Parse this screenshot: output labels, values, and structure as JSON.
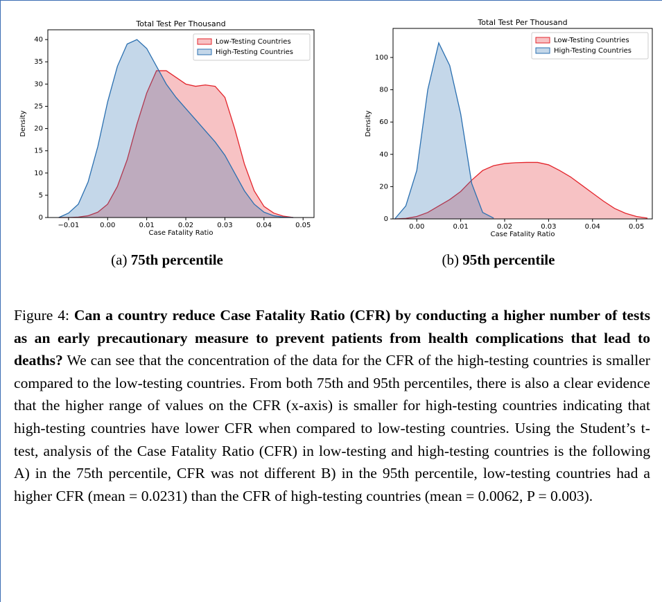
{
  "chart_data": [
    {
      "type": "kde",
      "title": "Total Test Per Thousand",
      "xlabel": "Case Fatality Ratio",
      "ylabel": "Density",
      "x": [
        -0.0125,
        -0.01,
        -0.0075,
        -0.005,
        -0.0025,
        0,
        0.0025,
        0.005,
        0.0075,
        0.01,
        0.0125,
        0.015,
        0.0175,
        0.02,
        0.0225,
        0.025,
        0.0275,
        0.03,
        0.0325,
        0.035,
        0.0375,
        0.04,
        0.0425,
        0.045,
        0.0475
      ],
      "series": [
        {
          "name": "Low-Testing Countries",
          "color": "#e3242b",
          "values": [
            0,
            0,
            0.1,
            0.4,
            1.2,
            3,
            7,
            13,
            21,
            28,
            33,
            33,
            31.5,
            30,
            29.5,
            29.8,
            29.5,
            27,
            20,
            12,
            6,
            2.5,
            1,
            0.3,
            0
          ]
        },
        {
          "name": "High-Testing Countries",
          "color": "#2a6fb0",
          "values": [
            0,
            1,
            3,
            8,
            16,
            26,
            34,
            39,
            40,
            38,
            34,
            30,
            27,
            24.5,
            22,
            19.5,
            17,
            14,
            10,
            6,
            3,
            1.2,
            0.4,
            0.1,
            0
          ]
        }
      ],
      "xlim": [
        -0.0153,
        0.0528
      ],
      "ylim": [
        0,
        42.2
      ],
      "xticks": [
        {
          "value": -0.01,
          "label": "−0.01"
        },
        {
          "value": 0,
          "label": "0.00"
        },
        0.01,
        0.02,
        0.03,
        0.04,
        0.05
      ],
      "yticks": [
        0,
        5,
        10,
        15,
        20,
        25,
        30,
        35,
        40
      ],
      "legend": "upper right"
    },
    {
      "type": "kde",
      "title": "Total Test Per Thousand",
      "xlabel": "Case Fatality Ratio",
      "ylabel": "Density",
      "x": [
        -0.005,
        -0.0025,
        0,
        0.0025,
        0.005,
        0.0075,
        0.01,
        0.0125,
        0.015,
        0.0175,
        0.02,
        0.0225,
        0.025,
        0.0275,
        0.03,
        0.0325,
        0.035,
        0.0375,
        0.04,
        0.0425,
        0.045,
        0.0475,
        0.05,
        0.0525
      ],
      "series": [
        {
          "name": "Low-Testing Countries",
          "color": "#e3242b",
          "values": [
            0,
            0.3,
            1.5,
            4,
            8,
            12,
            17,
            24,
            30,
            33,
            34.3,
            34.8,
            35,
            35,
            33.5,
            30,
            26,
            21,
            16,
            11,
            6.5,
            3.5,
            1.5,
            0.5
          ]
        },
        {
          "name": "High-Testing Countries",
          "color": "#2a6fb0",
          "values": [
            0,
            8,
            30,
            80,
            109,
            95,
            65,
            22,
            4,
            0.5,
            null,
            null,
            null,
            null,
            null,
            null,
            null,
            null,
            null,
            null,
            null,
            null,
            null,
            null
          ]
        }
      ],
      "xlim": [
        -0.0054,
        0.0536
      ],
      "ylim": [
        0,
        118
      ],
      "xticks": [
        {
          "value": 0,
          "label": "0.00"
        },
        0.01,
        0.02,
        0.03,
        0.04,
        0.05
      ],
      "yticks": [
        0,
        20,
        40,
        60,
        80,
        100
      ],
      "legend": "upper right"
    }
  ],
  "subcaptions": [
    {
      "label": "(a)",
      "text": "75th percentile"
    },
    {
      "label": "(b)",
      "text": "95th percentile"
    }
  ],
  "caption": {
    "label": "Figure 4:",
    "question": "Can a country reduce Case Fatality Ratio (CFR) by conducting a higher number of tests as an early precautionary measure to prevent patients from health complications that lead to deaths?",
    "body": "We can see that the concentration of the data for the CFR of the high-testing countries is smaller compared to the low-testing countries. From both 75th and 95th percentiles, there is also a clear evidence that the higher range of values on the CFR (x-axis) is smaller for high-testing countries indicating that high-testing countries have lower CFR when compared to low-testing countries. Using the Student’s t-test, analysis of the Case Fatality Ratio (CFR) in low-testing and high-testing countries is the following A) in the 75th percentile, CFR was not different B) in the 95th percentile, low-testing countries had a higher CFR (mean = 0.0231) than the CFR of high-testing countries (mean = 0.0062, P = 0.003)."
  }
}
